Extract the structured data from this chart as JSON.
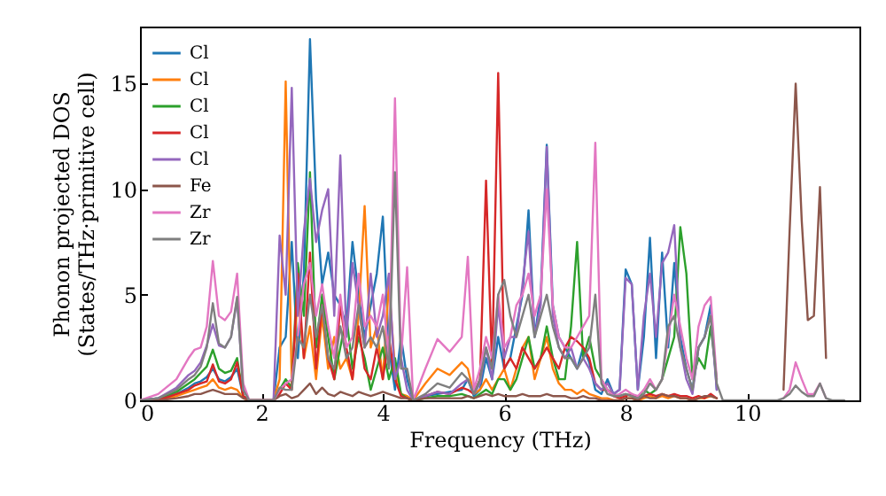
{
  "chart_data": {
    "type": "line",
    "xlabel": "Frequency (THz)",
    "ylabel": "Phonon projected DOS\n(States/THz·primitive cell)",
    "xlim": [
      0,
      11.85
    ],
    "ylim": [
      0,
      17.7
    ],
    "xticks": [
      0,
      2,
      4,
      6,
      8,
      10
    ],
    "yticks": [
      0,
      5,
      10,
      15
    ],
    "grid": false,
    "legend": "top left",
    "marker": "none",
    "line_style": "solid",
    "x": [
      0,
      0.3,
      0.6,
      0.8,
      0.9,
      1.0,
      1.1,
      1.2,
      1.3,
      1.4,
      1.5,
      1.6,
      1.7,
      1.8,
      2.2,
      2.3,
      2.4,
      2.5,
      2.6,
      2.7,
      2.8,
      2.9,
      3.0,
      3.1,
      3.2,
      3.3,
      3.4,
      3.5,
      3.6,
      3.7,
      3.8,
      3.9,
      4.0,
      4.1,
      4.2,
      4.3,
      4.4,
      4.5,
      4.7,
      4.9,
      5.1,
      5.3,
      5.4,
      5.5,
      5.6,
      5.7,
      5.8,
      5.9,
      6.0,
      6.1,
      6.2,
      6.3,
      6.4,
      6.5,
      6.6,
      6.7,
      6.8,
      6.9,
      7.0,
      7.1,
      7.2,
      7.3,
      7.4,
      7.5,
      7.6,
      7.7,
      7.8,
      7.9,
      8.0,
      8.1,
      8.2,
      8.3,
      8.4,
      8.5,
      8.6,
      8.7,
      8.8,
      8.9,
      9.0,
      9.1,
      9.2,
      9.3,
      9.4,
      9.5,
      9.6,
      9.8,
      10.5,
      10.6,
      10.7,
      10.8,
      10.9,
      11.0,
      11.1,
      11.2,
      11.3,
      11.4,
      11.6
    ],
    "series": [
      {
        "name": "Cl",
        "color": "#1f77b4",
        "values": [
          0,
          0.1,
          0.3,
          0.6,
          0.8,
          0.9,
          1.1,
          1.5,
          1.0,
          0.9,
          1.1,
          1.5,
          0.2,
          0,
          0,
          2.5,
          3.0,
          7.5,
          2.0,
          6.0,
          17.1,
          9.5,
          5.5,
          7.0,
          5.0,
          4.5,
          3.5,
          7.5,
          5.0,
          3.0,
          4.5,
          6.0,
          8.7,
          2.5,
          0.5,
          3.0,
          1.0,
          0,
          0.2,
          0.3,
          0.4,
          0.5,
          1.0,
          0.2,
          0.5,
          2.0,
          1.0,
          3.0,
          1.5,
          2.0,
          3.5,
          5.0,
          9.0,
          3.0,
          5.0,
          12.1,
          4.5,
          3.0,
          2.5,
          2.0,
          1.5,
          2.5,
          1.8,
          0.5,
          0.3,
          1.0,
          0.3,
          0.5,
          6.2,
          5.5,
          0.5,
          3.0,
          7.7,
          2.0,
          7.0,
          2.5,
          6.5,
          3.0,
          1.5,
          0.5,
          2.5,
          3.0,
          4.5,
          0.5,
          null,
          null,
          null,
          null,
          null,
          null,
          null,
          null,
          null,
          null,
          null,
          null,
          null
        ]
      },
      {
        "name": "Cl",
        "color": "#ff7f0e",
        "values": [
          0,
          0,
          0.2,
          0.4,
          0.5,
          0.6,
          0.7,
          1.0,
          0.6,
          0.5,
          0.6,
          0.5,
          0.1,
          0,
          0,
          1.0,
          15.1,
          0.8,
          5.0,
          2.0,
          3.5,
          1.0,
          4.0,
          1.5,
          3.0,
          1.5,
          2.0,
          1.0,
          4.0,
          9.2,
          2.5,
          3.5,
          1.0,
          5.5,
          1.5,
          0.3,
          0.2,
          0,
          0.8,
          1.5,
          1.2,
          1.8,
          1.5,
          0.3,
          0.5,
          1.0,
          0.5,
          1.0,
          1.5,
          0.5,
          1.5,
          2.5,
          3.0,
          1.0,
          2.0,
          3.0,
          1.5,
          0.8,
          0.5,
          0.5,
          0.3,
          0.5,
          0.3,
          0.2,
          0.1,
          0.1,
          0,
          0,
          0.1,
          0.1,
          0,
          0.1,
          0.2,
          0.1,
          0.2,
          0.1,
          0.2,
          0.1,
          0.1,
          0,
          0.1,
          0.1,
          0.2,
          0.1,
          null,
          null,
          null,
          null,
          null,
          null,
          null,
          null,
          null,
          null,
          null,
          null,
          null
        ]
      },
      {
        "name": "Cl",
        "color": "#2ca02c",
        "values": [
          0,
          0.1,
          0.4,
          0.8,
          1.0,
          1.3,
          1.6,
          2.4,
          1.5,
          1.3,
          1.4,
          2.0,
          0.2,
          0,
          0,
          0.5,
          1.0,
          0.6,
          6.5,
          4.0,
          10.8,
          2.5,
          5.0,
          3.0,
          1.0,
          2.5,
          4.0,
          1.5,
          3.0,
          2.0,
          0.5,
          1.5,
          2.5,
          1.0,
          2.0,
          0.3,
          0.1,
          0,
          0.1,
          0.2,
          0.2,
          0.3,
          0.2,
          0.1,
          0.3,
          0.5,
          0.3,
          1.0,
          1.0,
          0.5,
          1.0,
          2.0,
          3.0,
          1.5,
          2.0,
          3.5,
          2.0,
          1.0,
          1.0,
          3.5,
          7.5,
          2.0,
          3.0,
          1.5,
          1.0,
          0.5,
          0.3,
          0.2,
          0.3,
          0.2,
          0.1,
          0.5,
          0.3,
          0.5,
          1.0,
          2.0,
          3.0,
          8.2,
          6.0,
          1.0,
          2.0,
          1.5,
          3.5,
          1.0,
          null,
          null,
          null,
          null,
          null,
          null,
          null,
          null,
          null,
          null,
          null,
          null,
          null
        ]
      },
      {
        "name": "Cl",
        "color": "#d62728",
        "values": [
          0,
          0,
          0.3,
          0.5,
          0.7,
          0.8,
          0.9,
          1.7,
          0.9,
          0.8,
          1.0,
          1.8,
          0.2,
          0,
          0,
          0.3,
          0.8,
          0.5,
          6.0,
          2.0,
          7.0,
          1.5,
          4.5,
          2.0,
          1.0,
          4.5,
          2.5,
          1.0,
          3.5,
          1.5,
          1.0,
          2.5,
          1.0,
          3.0,
          1.0,
          0.2,
          0.1,
          0,
          0.2,
          0.4,
          0.3,
          0.6,
          0.5,
          0.3,
          1.0,
          10.4,
          1.5,
          15.5,
          1.5,
          2.0,
          1.5,
          2.5,
          2.0,
          1.5,
          2.0,
          2.5,
          2.0,
          1.5,
          2.5,
          3.0,
          2.8,
          2.5,
          2.0,
          0.8,
          0.5,
          0.5,
          0.2,
          0.1,
          0.2,
          0.3,
          0.1,
          0.2,
          0.3,
          0.2,
          0.3,
          0.2,
          0.3,
          0.2,
          0.2,
          0.1,
          0.2,
          0.1,
          0.3,
          0.1,
          null,
          null,
          null,
          null,
          null,
          null,
          null,
          null,
          null,
          null,
          null,
          null,
          null
        ]
      },
      {
        "name": "Cl",
        "color": "#9467bd",
        "values": [
          0,
          0.1,
          0.6,
          1.2,
          1.4,
          1.8,
          2.6,
          3.6,
          2.6,
          2.5,
          3.0,
          4.8,
          0.5,
          0,
          0,
          7.8,
          5.0,
          14.8,
          4.0,
          8.0,
          10.5,
          7.5,
          9.0,
          10.0,
          4.0,
          11.6,
          3.0,
          6.5,
          4.5,
          2.5,
          6.0,
          3.0,
          4.0,
          6.0,
          1.0,
          2.0,
          0.5,
          0,
          0.2,
          0.4,
          0.3,
          0.8,
          1.0,
          0.3,
          0.8,
          2.5,
          1.0,
          4.5,
          2.0,
          3.0,
          3.0,
          5.5,
          8.0,
          3.0,
          4.5,
          12.0,
          4.0,
          2.5,
          2.0,
          2.5,
          1.5,
          2.0,
          1.5,
          0.8,
          0.5,
          0.8,
          0.3,
          0.5,
          5.8,
          5.5,
          0.5,
          4.0,
          6.0,
          3.0,
          6.5,
          7.0,
          8.3,
          2.5,
          1.0,
          0.3,
          2.5,
          3.0,
          4.0,
          0.5,
          null,
          null,
          null,
          null,
          null,
          null,
          null,
          null,
          null,
          null,
          null,
          null,
          null
        ]
      },
      {
        "name": "Fe",
        "color": "#8c564b",
        "values": [
          0,
          0,
          0.1,
          0.2,
          0.3,
          0.3,
          0.4,
          0.5,
          0.4,
          0.3,
          0.3,
          0.3,
          0.1,
          0,
          0,
          0.2,
          0.3,
          0.1,
          0.2,
          0.5,
          0.8,
          0.3,
          0.6,
          0.3,
          0.2,
          0.4,
          0.3,
          0.2,
          0.4,
          0.3,
          0.2,
          0.3,
          0.4,
          0.3,
          0.2,
          0.1,
          0.1,
          0,
          0.1,
          0.1,
          0.1,
          0.1,
          0.2,
          0.1,
          0.2,
          0.3,
          0.2,
          0.3,
          0.2,
          0.2,
          0.2,
          0.3,
          0.2,
          0.2,
          0.2,
          0.3,
          0.2,
          0.2,
          0.2,
          0.1,
          0.1,
          0.2,
          0.1,
          0.1,
          0,
          0,
          0,
          0,
          0.1,
          0.1,
          0,
          0.2,
          0.1,
          0.1,
          0.3,
          0.2,
          0.2,
          0.1,
          0.1,
          0,
          0.1,
          0.2,
          0.2,
          0.1,
          null,
          null,
          null,
          0.5,
          8.0,
          15.0,
          8.5,
          3.8,
          4.0,
          10.1,
          2.0,
          null,
          null
        ]
      },
      {
        "name": "Zr",
        "color": "#e377c2",
        "values": [
          0,
          0.3,
          1.0,
          2.0,
          2.4,
          2.5,
          3.5,
          6.6,
          4.0,
          3.8,
          4.2,
          6.0,
          0.8,
          0,
          0,
          0.5,
          0.8,
          1.0,
          3.0,
          5.5,
          6.5,
          4.0,
          5.5,
          3.5,
          2.0,
          5.0,
          2.5,
          3.0,
          6.0,
          3.5,
          4.0,
          3.5,
          5.0,
          2.0,
          14.3,
          2.0,
          6.3,
          0,
          1.5,
          2.9,
          2.3,
          3.0,
          6.8,
          0.5,
          1.5,
          3.0,
          2.0,
          5.0,
          2.5,
          3.0,
          4.5,
          5.0,
          6.0,
          4.0,
          5.0,
          10.0,
          4.5,
          3.0,
          2.5,
          2.5,
          3.0,
          3.5,
          4.0,
          12.2,
          1.0,
          0.5,
          0.2,
          0.3,
          0.5,
          0.3,
          0.2,
          0.5,
          1.0,
          0.5,
          1.0,
          3.0,
          5.0,
          3.5,
          2.0,
          1.0,
          3.5,
          4.5,
          4.9,
          1.0,
          null,
          null,
          null,
          0.1,
          0.5,
          1.8,
          1.0,
          0.3,
          0.3,
          0.8,
          0.1,
          null,
          null
        ]
      },
      {
        "name": "Zr",
        "color": "#7f7f7f",
        "values": [
          0,
          0.1,
          0.5,
          1.0,
          1.2,
          1.6,
          2.5,
          4.6,
          2.7,
          2.5,
          3.0,
          4.9,
          0.5,
          0,
          0,
          0.6,
          0.5,
          0.5,
          3.0,
          2.5,
          5.0,
          3.0,
          4.5,
          2.0,
          1.5,
          3.5,
          2.0,
          2.5,
          4.5,
          2.5,
          3.0,
          2.5,
          3.5,
          1.5,
          10.8,
          1.5,
          1.5,
          0,
          0.3,
          0.8,
          0.6,
          1.3,
          1.0,
          0.3,
          1.0,
          2.5,
          1.5,
          5.0,
          5.7,
          4.0,
          3.0,
          4.0,
          5.0,
          3.0,
          4.0,
          5.0,
          3.5,
          2.5,
          2.0,
          2.0,
          1.5,
          2.0,
          2.5,
          5.0,
          0.8,
          0.3,
          0.2,
          0.2,
          0.3,
          0.2,
          0.1,
          0.3,
          0.8,
          0.5,
          1.0,
          3.5,
          4.0,
          2.5,
          1.5,
          0.5,
          2.5,
          3.0,
          4.0,
          0.8,
          0,
          0,
          0,
          0.1,
          0.3,
          0.7,
          0.4,
          0.2,
          0.2,
          0.8,
          0.1,
          0,
          0
        ]
      }
    ]
  }
}
